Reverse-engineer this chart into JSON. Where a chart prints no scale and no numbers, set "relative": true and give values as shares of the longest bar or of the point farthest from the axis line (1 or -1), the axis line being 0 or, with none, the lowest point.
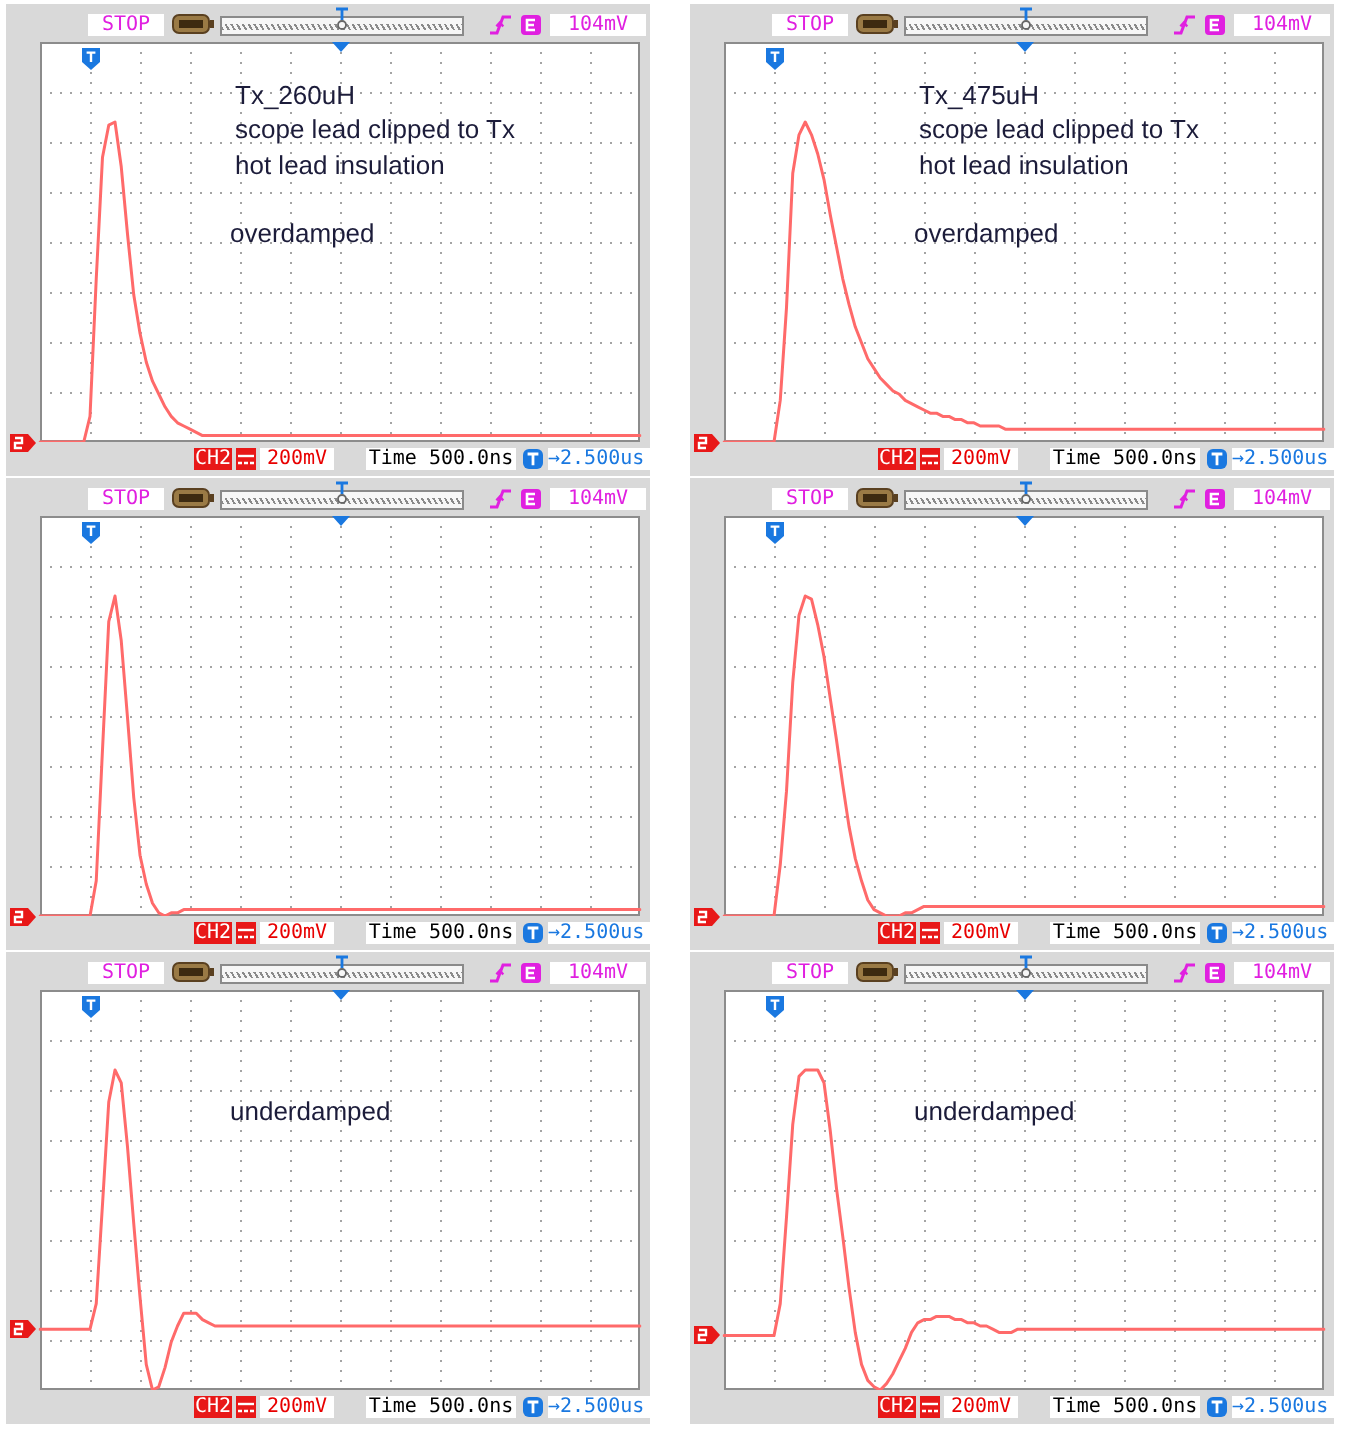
{
  "chart_data": [
    {
      "type": "line",
      "relative": true,
      "grid": true,
      "color": "#ff6a6a",
      "categories": [
        null,
        null,
        null,
        null,
        null,
        null,
        null,
        null,
        null,
        null,
        null,
        null,
        null,
        null,
        null,
        null,
        null,
        null,
        null,
        null,
        null,
        null,
        null,
        null,
        null,
        null,
        null,
        null,
        null,
        null,
        null,
        null,
        null,
        null,
        null,
        null,
        null,
        null,
        null,
        null,
        null,
        null,
        null,
        null,
        null,
        null,
        null,
        null,
        null,
        null,
        null,
        null,
        null,
        null,
        null,
        null,
        null,
        null,
        null,
        null,
        null,
        null,
        null,
        null,
        null,
        null,
        null,
        null,
        null,
        null,
        null,
        null,
        null,
        null,
        null,
        null,
        null,
        null,
        null,
        null,
        null,
        null,
        null,
        null,
        null,
        null,
        null,
        null,
        null,
        null,
        null,
        null,
        null,
        null,
        null,
        null,
        null
      ],
      "values": [
        0,
        0,
        0,
        0,
        0,
        0,
        0,
        0,
        0.08,
        0.51,
        0.89,
        0.99,
        1,
        0.86,
        0.65,
        0.46,
        0.34,
        0.25,
        0.19,
        0.15,
        0.11,
        0.08,
        0.06,
        0.05,
        0.04,
        0.03,
        0.02,
        0.02,
        0.02,
        0.02,
        0.02,
        0.02,
        0.02,
        0.02,
        0.02,
        0.02,
        0.02,
        0.02,
        0.02,
        0.02,
        0.02,
        0.02,
        0.02,
        0.02,
        0.02,
        0.02,
        0.02,
        0.02,
        0.02,
        0.02,
        0.02,
        0.02,
        0.02,
        0.02,
        0.02,
        0.02,
        0.02,
        0.02,
        0.02,
        0.02,
        0.02,
        0.02,
        0.02,
        0.02,
        0.02,
        0.02,
        0.02,
        0.02,
        0.02,
        0.02,
        0.02,
        0.02,
        0.02,
        0.02,
        0.02,
        0.02,
        0.02,
        0.02,
        0.02,
        0.02,
        0.02,
        0.02,
        0.02,
        0.02,
        0.02,
        0.02,
        0.02,
        0.02,
        0.02,
        0.02,
        0.02,
        0.02,
        0.02,
        0.02,
        0.02,
        0.02,
        0.02
      ],
      "annotations": [
        "STOP",
        "104mV",
        "CH2",
        "200mV",
        "Time 500.0ns",
        "→2.500us",
        "Tx_260uH",
        "scope lead clipped to Tx",
        "hot lead insulation",
        "overdamped"
      ]
    },
    {
      "type": "line",
      "relative": true,
      "grid": true,
      "color": "#ff6a6a",
      "categories": [
        null,
        null,
        null,
        null,
        null,
        null,
        null,
        null,
        null,
        null,
        null,
        null,
        null,
        null,
        null,
        null,
        null,
        null,
        null,
        null,
        null,
        null,
        null,
        null,
        null,
        null,
        null,
        null,
        null,
        null,
        null,
        null,
        null,
        null,
        null,
        null,
        null,
        null,
        null,
        null,
        null,
        null,
        null,
        null,
        null,
        null,
        null,
        null,
        null,
        null,
        null,
        null,
        null,
        null,
        null,
        null,
        null,
        null,
        null,
        null,
        null,
        null,
        null,
        null,
        null,
        null,
        null,
        null,
        null,
        null,
        null,
        null,
        null,
        null,
        null,
        null,
        null,
        null,
        null,
        null,
        null,
        null,
        null,
        null,
        null,
        null,
        null,
        null,
        null,
        null,
        null,
        null,
        null,
        null,
        null,
        null,
        null
      ],
      "values": [
        0,
        0,
        0,
        0,
        0,
        0,
        0,
        0,
        0,
        0.13,
        0.42,
        0.84,
        0.96,
        1,
        0.96,
        0.9,
        0.82,
        0.71,
        0.61,
        0.51,
        0.43,
        0.36,
        0.31,
        0.26,
        0.23,
        0.2,
        0.18,
        0.16,
        0.15,
        0.13,
        0.12,
        0.11,
        0.1,
        0.09,
        0.09,
        0.08,
        0.08,
        0.07,
        0.07,
        0.06,
        0.06,
        0.05,
        0.05,
        0.05,
        0.05,
        0.04,
        0.04,
        0.04,
        0.04,
        0.04,
        0.04,
        0.04,
        0.04,
        0.04,
        0.04,
        0.04,
        0.04,
        0.04,
        0.04,
        0.04,
        0.04,
        0.04,
        0.04,
        0.04,
        0.04,
        0.04,
        0.04,
        0.04,
        0.04,
        0.04,
        0.04,
        0.04,
        0.04,
        0.04,
        0.04,
        0.04,
        0.04,
        0.04,
        0.04,
        0.04,
        0.04,
        0.04,
        0.04,
        0.04,
        0.04,
        0.04,
        0.04,
        0.04,
        0.04,
        0.04,
        0.04,
        0.04,
        0.04,
        0.04,
        0.04,
        0.04,
        0.04
      ],
      "annotations": [
        "STOP",
        "104mV",
        "CH2",
        "200mV",
        "Time 500.0ns",
        "→2.500us",
        "Tx_475uH",
        "scope lead clipped to Tx",
        "hot lead insulation",
        "overdamped"
      ]
    },
    {
      "type": "line",
      "relative": true,
      "grid": true,
      "color": "#ff6a6a",
      "categories": [
        null,
        null,
        null,
        null,
        null,
        null,
        null,
        null,
        null,
        null,
        null,
        null,
        null,
        null,
        null,
        null,
        null,
        null,
        null,
        null,
        null,
        null,
        null,
        null,
        null,
        null,
        null,
        null,
        null,
        null,
        null,
        null,
        null,
        null,
        null,
        null,
        null,
        null,
        null,
        null,
        null,
        null,
        null,
        null,
        null,
        null,
        null,
        null,
        null,
        null,
        null,
        null,
        null,
        null,
        null,
        null,
        null,
        null,
        null,
        null,
        null,
        null,
        null,
        null,
        null,
        null,
        null,
        null,
        null,
        null,
        null,
        null,
        null,
        null,
        null,
        null,
        null,
        null,
        null,
        null,
        null,
        null,
        null,
        null,
        null,
        null,
        null,
        null,
        null,
        null,
        null,
        null,
        null,
        null,
        null,
        null,
        null
      ],
      "values": [
        0,
        0,
        0,
        0,
        0,
        0,
        0,
        0,
        0,
        0.11,
        0.52,
        0.92,
        1,
        0.86,
        0.62,
        0.37,
        0.19,
        0.1,
        0.04,
        0.01,
        0,
        0.01,
        0.01,
        0.02,
        0.02,
        0.02,
        0.02,
        0.02,
        0.02,
        0.02,
        0.02,
        0.02,
        0.02,
        0.02,
        0.02,
        0.02,
        0.02,
        0.02,
        0.02,
        0.02,
        0.02,
        0.02,
        0.02,
        0.02,
        0.02,
        0.02,
        0.02,
        0.02,
        0.02,
        0.02,
        0.02,
        0.02,
        0.02,
        0.02,
        0.02,
        0.02,
        0.02,
        0.02,
        0.02,
        0.02,
        0.02,
        0.02,
        0.02,
        0.02,
        0.02,
        0.02,
        0.02,
        0.02,
        0.02,
        0.02,
        0.02,
        0.02,
        0.02,
        0.02,
        0.02,
        0.02,
        0.02,
        0.02,
        0.02,
        0.02,
        0.02,
        0.02,
        0.02,
        0.02,
        0.02,
        0.02,
        0.02,
        0.02,
        0.02,
        0.02,
        0.02,
        0.02,
        0.02,
        0.02,
        0.02,
        0.02,
        0.02
      ],
      "annotations": [
        "STOP",
        "104mV",
        "CH2",
        "200mV",
        "Time 500.0ns",
        "→2.500us"
      ]
    },
    {
      "type": "line",
      "relative": true,
      "grid": true,
      "color": "#ff6a6a",
      "categories": [
        null,
        null,
        null,
        null,
        null,
        null,
        null,
        null,
        null,
        null,
        null,
        null,
        null,
        null,
        null,
        null,
        null,
        null,
        null,
        null,
        null,
        null,
        null,
        null,
        null,
        null,
        null,
        null,
        null,
        null,
        null,
        null,
        null,
        null,
        null,
        null,
        null,
        null,
        null,
        null,
        null,
        null,
        null,
        null,
        null,
        null,
        null,
        null,
        null,
        null,
        null,
        null,
        null,
        null,
        null,
        null,
        null,
        null,
        null,
        null,
        null,
        null,
        null,
        null,
        null,
        null,
        null,
        null,
        null,
        null,
        null,
        null,
        null,
        null,
        null,
        null,
        null,
        null,
        null,
        null,
        null,
        null,
        null,
        null,
        null,
        null,
        null,
        null,
        null,
        null,
        null,
        null,
        null,
        null,
        null,
        null,
        null
      ],
      "values": [
        0,
        0,
        0,
        0,
        0,
        0,
        0,
        0,
        0,
        0.16,
        0.39,
        0.73,
        0.94,
        1,
        0.99,
        0.91,
        0.81,
        0.68,
        0.55,
        0.41,
        0.28,
        0.18,
        0.11,
        0.05,
        0.02,
        0.01,
        0,
        0,
        0,
        0.01,
        0.01,
        0.02,
        0.03,
        0.03,
        0.03,
        0.03,
        0.03,
        0.03,
        0.03,
        0.03,
        0.03,
        0.03,
        0.03,
        0.03,
        0.03,
        0.03,
        0.03,
        0.03,
        0.03,
        0.03,
        0.03,
        0.03,
        0.03,
        0.03,
        0.03,
        0.03,
        0.03,
        0.03,
        0.03,
        0.03,
        0.03,
        0.03,
        0.03,
        0.03,
        0.03,
        0.03,
        0.03,
        0.03,
        0.03,
        0.03,
        0.03,
        0.03,
        0.03,
        0.03,
        0.03,
        0.03,
        0.03,
        0.03,
        0.03,
        0.03,
        0.03,
        0.03,
        0.03,
        0.03,
        0.03,
        0.03,
        0.03,
        0.03,
        0.03,
        0.03,
        0.03,
        0.03,
        0.03,
        0.03,
        0.03,
        0.03,
        0.03
      ],
      "annotations": [
        "STOP",
        "104mV",
        "CH2",
        "200mV",
        "Time 500.0ns",
        "→2.500us"
      ]
    },
    {
      "type": "line",
      "relative": true,
      "grid": true,
      "color": "#ff6a6a",
      "categories": [
        null,
        null,
        null,
        null,
        null,
        null,
        null,
        null,
        null,
        null,
        null,
        null,
        null,
        null,
        null,
        null,
        null,
        null,
        null,
        null,
        null,
        null,
        null,
        null,
        null,
        null,
        null,
        null,
        null,
        null,
        null,
        null,
        null,
        null,
        null,
        null,
        null,
        null,
        null,
        null,
        null,
        null,
        null,
        null,
        null,
        null,
        null,
        null,
        null,
        null,
        null,
        null,
        null,
        null,
        null,
        null,
        null,
        null,
        null,
        null,
        null,
        null,
        null,
        null,
        null,
        null,
        null,
        null,
        null,
        null,
        null,
        null,
        null,
        null,
        null,
        null,
        null,
        null,
        null,
        null,
        null,
        null,
        null,
        null,
        null,
        null,
        null,
        null,
        null,
        null,
        null,
        null,
        null,
        null,
        null,
        null,
        null
      ],
      "values": [
        0.19,
        0.19,
        0.19,
        0.19,
        0.19,
        0.19,
        0.19,
        0.19,
        0.19,
        0.27,
        0.58,
        0.9,
        1,
        0.96,
        0.76,
        0.52,
        0.29,
        0.08,
        0,
        0.01,
        0.07,
        0.15,
        0.2,
        0.24,
        0.24,
        0.24,
        0.22,
        0.21,
        0.2,
        0.2,
        0.2,
        0.2,
        0.2,
        0.2,
        0.2,
        0.2,
        0.2,
        0.2,
        0.2,
        0.2,
        0.2,
        0.2,
        0.2,
        0.2,
        0.2,
        0.2,
        0.2,
        0.2,
        0.2,
        0.2,
        0.2,
        0.2,
        0.2,
        0.2,
        0.2,
        0.2,
        0.2,
        0.2,
        0.2,
        0.2,
        0.2,
        0.2,
        0.2,
        0.2,
        0.2,
        0.2,
        0.2,
        0.2,
        0.2,
        0.2,
        0.2,
        0.2,
        0.2,
        0.2,
        0.2,
        0.2,
        0.2,
        0.2,
        0.2,
        0.2,
        0.2,
        0.2,
        0.2,
        0.2,
        0.2,
        0.2,
        0.2,
        0.2,
        0.2,
        0.2,
        0.2,
        0.2,
        0.2,
        0.2,
        0.2,
        0.2,
        0.2
      ],
      "annotations": [
        "STOP",
        "104mV",
        "CH2",
        "200mV",
        "Time 500.0ns",
        "→2.500us",
        "underdamped"
      ]
    },
    {
      "type": "line",
      "relative": true,
      "grid": true,
      "color": "#ff6a6a",
      "categories": [
        null,
        null,
        null,
        null,
        null,
        null,
        null,
        null,
        null,
        null,
        null,
        null,
        null,
        null,
        null,
        null,
        null,
        null,
        null,
        null,
        null,
        null,
        null,
        null,
        null,
        null,
        null,
        null,
        null,
        null,
        null,
        null,
        null,
        null,
        null,
        null,
        null,
        null,
        null,
        null,
        null,
        null,
        null,
        null,
        null,
        null,
        null,
        null,
        null,
        null,
        null,
        null,
        null,
        null,
        null,
        null,
        null,
        null,
        null,
        null,
        null,
        null,
        null,
        null,
        null,
        null,
        null,
        null,
        null,
        null,
        null,
        null,
        null,
        null,
        null,
        null,
        null,
        null,
        null,
        null,
        null,
        null,
        null,
        null,
        null,
        null,
        null,
        null,
        null,
        null,
        null,
        null,
        null,
        null,
        null,
        null,
        null
      ],
      "values": [
        0.17,
        0.17,
        0.17,
        0.17,
        0.17,
        0.17,
        0.17,
        0.17,
        0.17,
        0.27,
        0.54,
        0.83,
        0.98,
        1,
        1,
        1,
        0.96,
        0.81,
        0.63,
        0.48,
        0.32,
        0.18,
        0.08,
        0.03,
        0.01,
        0,
        0.02,
        0.05,
        0.09,
        0.13,
        0.18,
        0.21,
        0.22,
        0.22,
        0.23,
        0.23,
        0.23,
        0.22,
        0.22,
        0.21,
        0.21,
        0.2,
        0.2,
        0.19,
        0.18,
        0.18,
        0.18,
        0.19,
        0.19,
        0.19,
        0.19,
        0.19,
        0.19,
        0.19,
        0.19,
        0.19,
        0.19,
        0.19,
        0.19,
        0.19,
        0.19,
        0.19,
        0.19,
        0.19,
        0.19,
        0.19,
        0.19,
        0.19,
        0.19,
        0.19,
        0.19,
        0.19,
        0.19,
        0.19,
        0.19,
        0.19,
        0.19,
        0.19,
        0.19,
        0.19,
        0.19,
        0.19,
        0.19,
        0.19,
        0.19,
        0.19,
        0.19,
        0.19,
        0.19,
        0.19,
        0.19,
        0.19,
        0.19,
        0.19,
        0.19,
        0.19,
        0.19
      ],
      "annotations": [
        "STOP",
        "104mV",
        "CH2",
        "200mV",
        "Time 500.0ns",
        "→2.500us",
        "underdamped"
      ]
    }
  ]
}
